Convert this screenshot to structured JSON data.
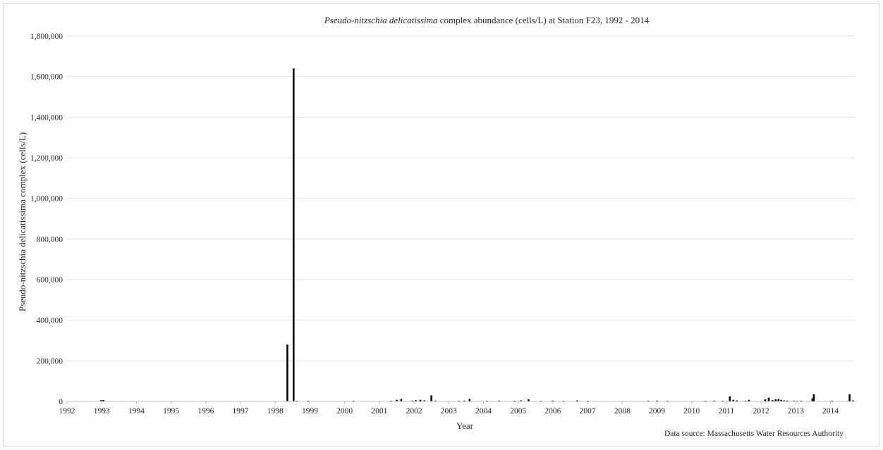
{
  "chart_data": {
    "type": "bar",
    "title_italic": "Pseudo-nitzschia delicatissima",
    "title_rest": " complex abundance (cells/L) at Station F23, 1992 - 2014",
    "xlabel": "Year",
    "ylabel": "Pseudo-nitzschia delicatissima complex (cells/L)",
    "source": "Data source: Massachusetts Water Resources Authority",
    "xlim": [
      1992,
      2014.7
    ],
    "ylim": [
      0,
      1800000
    ],
    "y_ticks": [
      0,
      200000,
      400000,
      600000,
      800000,
      1000000,
      1200000,
      1400000,
      1600000,
      1800000
    ],
    "y_tick_labels": [
      "0",
      "200,000",
      "400,000",
      "600,000",
      "800,000",
      "1,000,000",
      "1,200,000",
      "1,400,000",
      "1,600,000",
      "1,800,000"
    ],
    "x_ticks": [
      1992,
      1993,
      1994,
      1995,
      1996,
      1997,
      1998,
      1999,
      2000,
      2001,
      2002,
      2003,
      2004,
      2005,
      2006,
      2007,
      2008,
      2009,
      2010,
      2011,
      2012,
      2013,
      2014
    ],
    "x_tick_labels": [
      "1992",
      "1993",
      "1994",
      "1995",
      "1996",
      "1997",
      "1998",
      "1999",
      "2000",
      "2001",
      "2002",
      "2003",
      "2004",
      "2005",
      "2006",
      "2007",
      "2008",
      "2009",
      "2010",
      "2011",
      "2012",
      "2013",
      "2014"
    ],
    "grid": "horizontal",
    "series": [
      {
        "color": "#000000",
        "points": [
          {
            "x": 1992.98,
            "y": 6000
          },
          {
            "x": 1993.05,
            "y": 7000
          },
          {
            "x": 1998.35,
            "y": 280000
          },
          {
            "x": 1998.53,
            "y": 1640000
          },
          {
            "x": 1998.62,
            "y": 3000
          },
          {
            "x": 1998.95,
            "y": 2000
          },
          {
            "x": 2000.25,
            "y": 2000
          },
          {
            "x": 2001.35,
            "y": 3000
          },
          {
            "x": 2001.5,
            "y": 8000
          },
          {
            "x": 2001.63,
            "y": 12000
          },
          {
            "x": 2001.95,
            "y": 4000
          },
          {
            "x": 2002.05,
            "y": 6000
          },
          {
            "x": 2002.18,
            "y": 8000
          },
          {
            "x": 2002.3,
            "y": 5000
          },
          {
            "x": 2002.5,
            "y": 30000
          },
          {
            "x": 2002.62,
            "y": 4000
          },
          {
            "x": 2003.3,
            "y": 3000
          },
          {
            "x": 2003.45,
            "y": 4000
          },
          {
            "x": 2003.6,
            "y": 12000
          },
          {
            "x": 2004.1,
            "y": 3000
          },
          {
            "x": 2004.45,
            "y": 4000
          },
          {
            "x": 2004.9,
            "y": 3000
          },
          {
            "x": 2005.08,
            "y": 5000
          },
          {
            "x": 2005.3,
            "y": 10000
          },
          {
            "x": 2005.65,
            "y": 3000
          },
          {
            "x": 2006.0,
            "y": 4000
          },
          {
            "x": 2006.3,
            "y": 3000
          },
          {
            "x": 2006.7,
            "y": 5000
          },
          {
            "x": 2007.0,
            "y": 3000
          },
          {
            "x": 2008.75,
            "y": 3000
          },
          {
            "x": 2009.0,
            "y": 4000
          },
          {
            "x": 2009.3,
            "y": 3000
          },
          {
            "x": 2010.4,
            "y": 3000
          },
          {
            "x": 2010.65,
            "y": 4000
          },
          {
            "x": 2010.9,
            "y": 3000
          },
          {
            "x": 2011.1,
            "y": 25000
          },
          {
            "x": 2011.2,
            "y": 8000
          },
          {
            "x": 2011.3,
            "y": 5000
          },
          {
            "x": 2011.55,
            "y": 4000
          },
          {
            "x": 2011.65,
            "y": 8000
          },
          {
            "x": 2012.12,
            "y": 10000
          },
          {
            "x": 2012.22,
            "y": 18000
          },
          {
            "x": 2012.33,
            "y": 6000
          },
          {
            "x": 2012.42,
            "y": 10000
          },
          {
            "x": 2012.5,
            "y": 12000
          },
          {
            "x": 2012.58,
            "y": 8000
          },
          {
            "x": 2012.66,
            "y": 5000
          },
          {
            "x": 2012.75,
            "y": 4000
          },
          {
            "x": 2012.95,
            "y": 4000
          },
          {
            "x": 2013.05,
            "y": 3000
          },
          {
            "x": 2013.15,
            "y": 3000
          },
          {
            "x": 2013.48,
            "y": 15000
          },
          {
            "x": 2013.52,
            "y": 35000
          },
          {
            "x": 2014.05,
            "y": 3000
          },
          {
            "x": 2014.55,
            "y": 35000
          },
          {
            "x": 2014.65,
            "y": 5000
          }
        ]
      }
    ]
  }
}
